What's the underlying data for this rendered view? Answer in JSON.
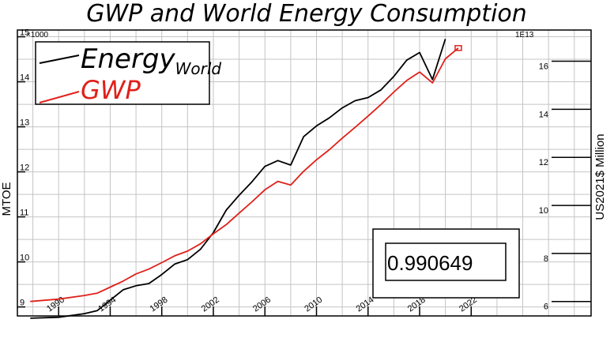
{
  "chart_data": {
    "type": "line",
    "title": "GWP and World Energy Consumption",
    "y_left": {
      "label": "MTOE",
      "multiplier": "×1000",
      "lim": [
        8.8,
        15.15
      ],
      "ticks": [
        9,
        10,
        11,
        12,
        13,
        14,
        15
      ]
    },
    "y_right": {
      "label": "US2021$ Million",
      "multiplier": "1E13",
      "lim": [
        5.4,
        17.3
      ],
      "ticks": [
        6,
        8,
        10,
        12,
        14,
        16
      ]
    },
    "x": {
      "lim": [
        1986.8,
        2031.3
      ],
      "ticks": [
        1990,
        1994,
        1998,
        2002,
        2006,
        2010,
        2014,
        2018,
        2022
      ]
    },
    "grid": true,
    "legend_position": "top-left",
    "annotation": "0.990649",
    "series": [
      {
        "name": "Energy",
        "name_subscript": "World",
        "axis": "left",
        "color": "#000000",
        "points": [
          [
            1987.8,
            8.75
          ],
          [
            1990,
            8.77
          ],
          [
            1992,
            8.85
          ],
          [
            1993,
            8.92
          ],
          [
            1994,
            9.15
          ],
          [
            1995,
            9.38
          ],
          [
            1996,
            9.47
          ],
          [
            1997,
            9.52
          ],
          [
            1998,
            9.72
          ],
          [
            1999,
            9.95
          ],
          [
            2000,
            10.05
          ],
          [
            2001,
            10.28
          ],
          [
            2002,
            10.65
          ],
          [
            2003,
            11.15
          ],
          [
            2004,
            11.48
          ],
          [
            2005,
            11.78
          ],
          [
            2006,
            12.12
          ],
          [
            2007,
            12.25
          ],
          [
            2008,
            12.15
          ],
          [
            2009,
            12.78
          ],
          [
            2010,
            13.02
          ],
          [
            2011,
            13.2
          ],
          [
            2012,
            13.42
          ],
          [
            2013,
            13.58
          ],
          [
            2014,
            13.65
          ],
          [
            2015,
            13.82
          ],
          [
            2016,
            14.12
          ],
          [
            2017,
            14.48
          ],
          [
            2018,
            14.65
          ],
          [
            2019,
            14.05
          ],
          [
            2020,
            14.95
          ]
        ]
      },
      {
        "name": "GWP",
        "name_subscript": "",
        "axis": "right",
        "color": "#e0201a",
        "points": [
          [
            1987.8,
            6.0
          ],
          [
            1990,
            6.1
          ],
          [
            1992,
            6.25
          ],
          [
            1993,
            6.35
          ],
          [
            1994,
            6.6
          ],
          [
            1995,
            6.85
          ],
          [
            1996,
            7.15
          ],
          [
            1997,
            7.35
          ],
          [
            1998,
            7.62
          ],
          [
            1999,
            7.9
          ],
          [
            2000,
            8.1
          ],
          [
            2001,
            8.4
          ],
          [
            2002,
            8.82
          ],
          [
            2003,
            9.2
          ],
          [
            2004,
            9.68
          ],
          [
            2005,
            10.15
          ],
          [
            2006,
            10.65
          ],
          [
            2007,
            11.0
          ],
          [
            2008,
            10.85
          ],
          [
            2009,
            11.42
          ],
          [
            2010,
            11.9
          ],
          [
            2011,
            12.32
          ],
          [
            2012,
            12.8
          ],
          [
            2013,
            13.25
          ],
          [
            2014,
            13.72
          ],
          [
            2015,
            14.2
          ],
          [
            2016,
            14.72
          ],
          [
            2017,
            15.2
          ],
          [
            2018,
            15.55
          ],
          [
            2019,
            15.1
          ],
          [
            2020,
            16.1
          ],
          [
            2021,
            16.55
          ]
        ]
      }
    ]
  }
}
